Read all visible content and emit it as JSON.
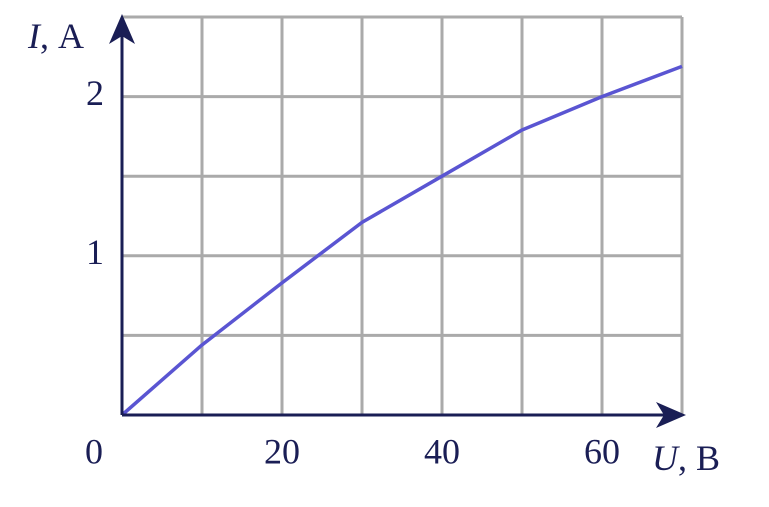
{
  "chart_data": {
    "type": "line",
    "xlabel": {
      "symbol": "U",
      "unit": ", В"
    },
    "ylabel": {
      "symbol": "I",
      "unit": ", А"
    },
    "x": [
      0,
      10,
      20,
      30,
      40,
      50,
      60,
      70
    ],
    "series": [
      {
        "color": "#5a55d2",
        "values": [
          0,
          0.44,
          0.83,
          1.21,
          1.5,
          1.79,
          2.0,
          2.19
        ]
      }
    ],
    "xlim": [
      0,
      70
    ],
    "ylim": [
      0,
      2.5
    ],
    "xticks": [
      0,
      20,
      40,
      60
    ],
    "yticks": [
      1,
      2
    ],
    "xgrid": [
      10,
      20,
      30,
      40,
      50,
      60,
      70
    ],
    "ygrid": [
      0.5,
      1,
      1.5,
      2,
      2.5
    ],
    "grid": true
  }
}
